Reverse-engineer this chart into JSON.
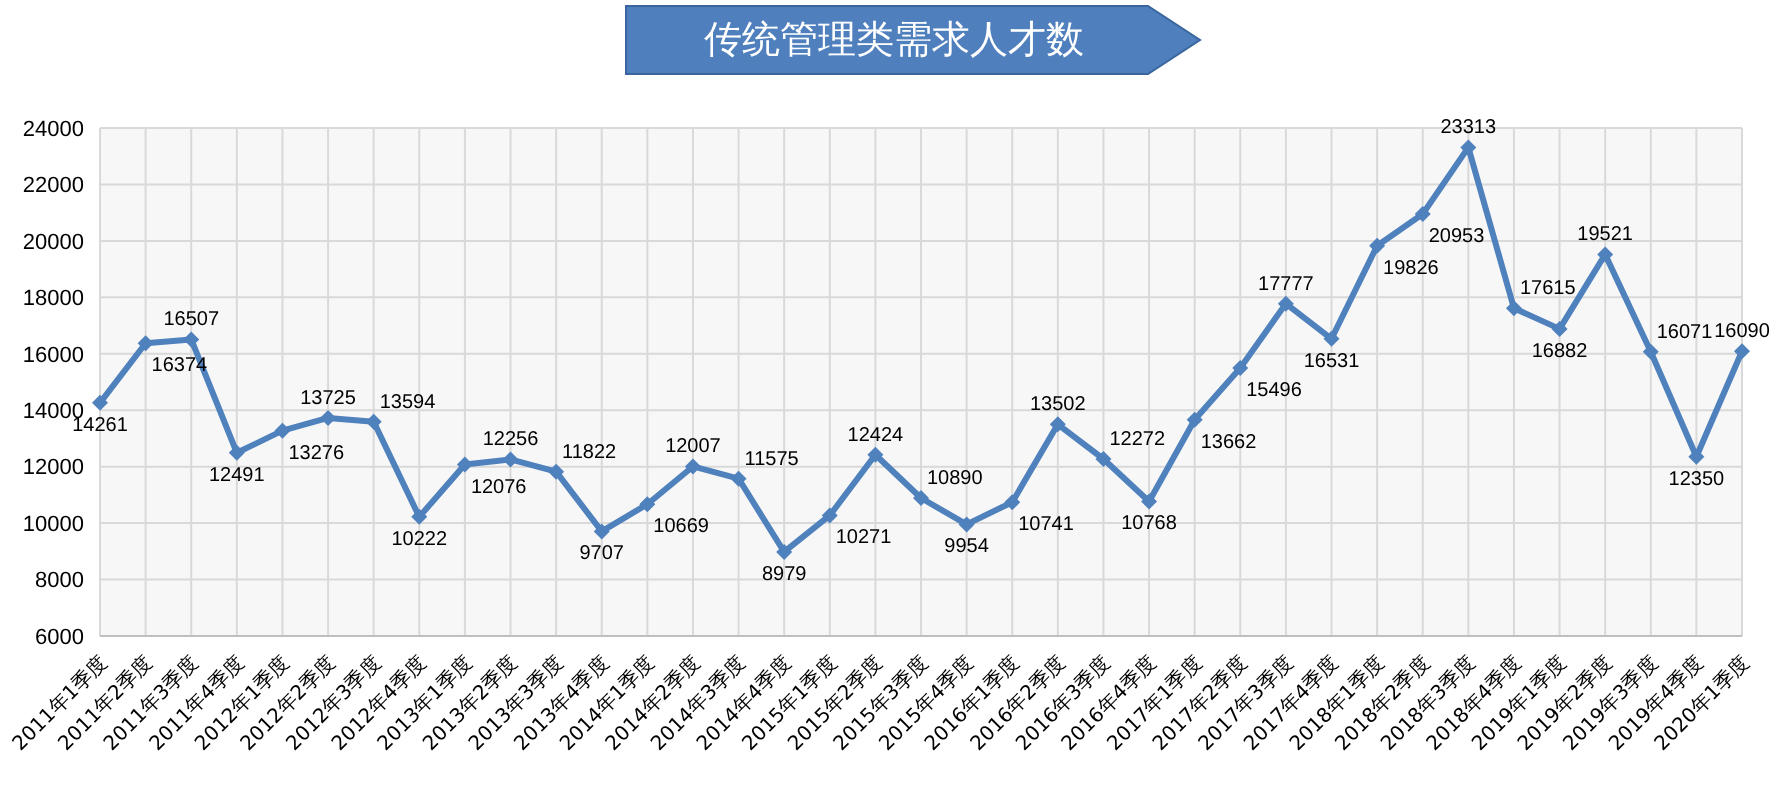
{
  "chart_data": {
    "type": "line",
    "title": "传统管理类需求人才数",
    "categories": [
      "2011年1季度",
      "2011年2季度",
      "2011年3季度",
      "2011年4季度",
      "2012年1季度",
      "2012年2季度",
      "2012年3季度",
      "2012年4季度",
      "2013年1季度",
      "2013年2季度",
      "2013年3季度",
      "2013年4季度",
      "2014年1季度",
      "2014年2季度",
      "2014年3季度",
      "2014年4季度",
      "2015年1季度",
      "2015年2季度",
      "2015年3季度",
      "2015年4季度",
      "2016年1季度",
      "2016年2季度",
      "2016年3季度",
      "2016年4季度",
      "2017年1季度",
      "2017年2季度",
      "2017年3季度",
      "2017年4季度",
      "2018年1季度",
      "2018年2季度",
      "2018年3季度",
      "2018年4季度",
      "2019年1季度",
      "2019年2季度",
      "2019年3季度",
      "2019年4季度",
      "2020年1季度"
    ],
    "series": [
      {
        "color": "#4f81bd",
        "values": [
          14261,
          16374,
          16507,
          12491,
          13276,
          13725,
          13594,
          10222,
          12076,
          12256,
          11822,
          9707,
          10669,
          12007,
          11575,
          8979,
          10271,
          12424,
          10890,
          9954,
          10741,
          13502,
          12272,
          10768,
          13662,
          15496,
          17777,
          16531,
          19826,
          20953,
          23313,
          17615,
          16882,
          19521,
          16071,
          12350,
          16090
        ]
      }
    ],
    "ylim": [
      6000,
      24000
    ],
    "yticks": [
      6000,
      8000,
      10000,
      12000,
      14000,
      16000,
      18000,
      20000,
      22000,
      24000
    ],
    "grid": true,
    "legend": false,
    "marker": "diamond",
    "line_style": "solid",
    "data_labels": true
  }
}
